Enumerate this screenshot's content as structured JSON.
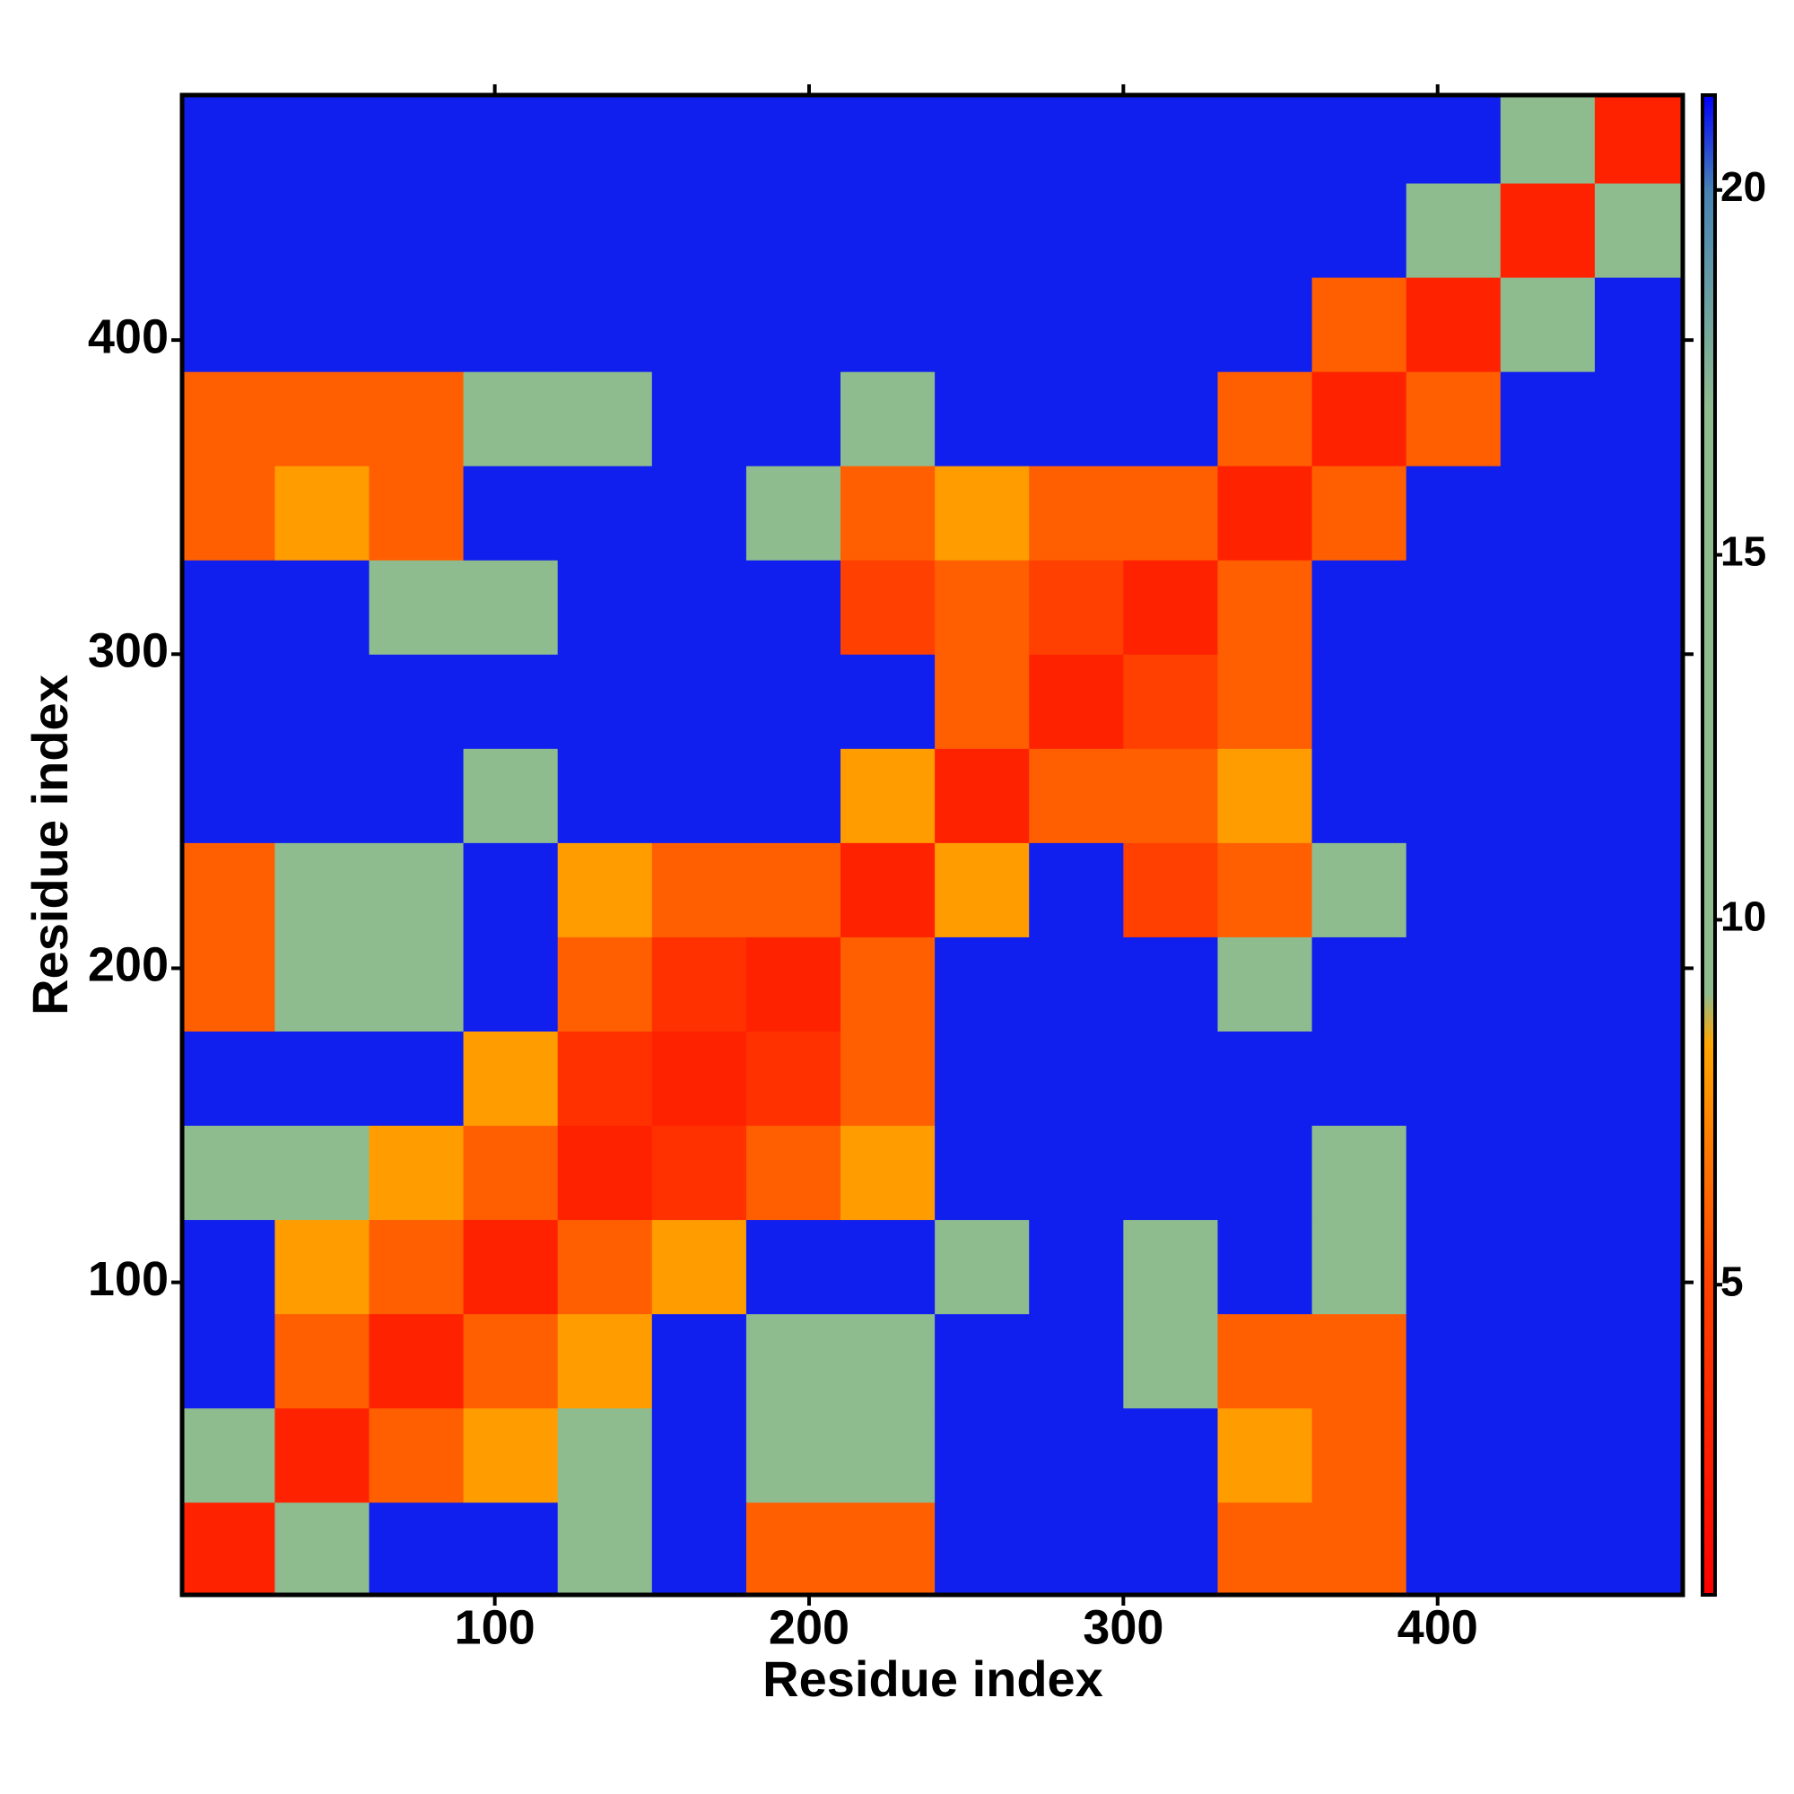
{
  "chart_data": {
    "type": "heatmap",
    "xlabel": "Residue index",
    "ylabel": "Residue index",
    "x": [
      15,
      45,
      75,
      105,
      135,
      165,
      195,
      225,
      255,
      285,
      315,
      345,
      375,
      405,
      435,
      465
    ],
    "y": [
      15,
      45,
      75,
      105,
      135,
      165,
      195,
      225,
      255,
      285,
      315,
      345,
      375,
      405,
      435,
      465
    ],
    "values": [
      [
        3,
        10,
        21,
        21,
        10,
        21,
        6,
        6,
        21,
        21,
        21,
        6,
        6,
        21,
        21,
        21
      ],
      [
        10,
        3,
        6,
        8,
        10,
        21,
        10,
        10,
        21,
        21,
        21,
        8,
        6,
        21,
        21,
        21
      ],
      [
        21,
        6,
        3,
        6,
        8,
        21,
        10,
        10,
        21,
        21,
        10,
        6,
        6,
        21,
        21,
        21
      ],
      [
        21,
        8,
        6,
        3,
        6,
        8,
        21,
        21,
        12,
        21,
        10,
        21,
        9,
        21,
        21,
        21
      ],
      [
        10,
        10,
        8,
        6,
        3,
        4,
        6,
        8,
        21,
        21,
        21,
        21,
        9,
        21,
        21,
        21
      ],
      [
        21,
        21,
        21,
        8,
        4,
        3,
        4,
        6,
        21,
        21,
        21,
        21,
        21,
        21,
        21,
        21
      ],
      [
        6,
        10,
        10,
        21,
        6,
        4,
        3,
        6,
        21,
        21,
        21,
        11,
        21,
        21,
        21,
        21
      ],
      [
        6,
        10,
        10,
        21,
        8,
        6,
        6,
        3,
        8,
        21,
        5,
        6,
        12,
        21,
        21,
        21
      ],
      [
        21,
        21,
        21,
        12,
        21,
        21,
        21,
        8,
        3,
        6,
        6,
        8,
        21,
        21,
        21,
        21
      ],
      [
        21,
        21,
        21,
        21,
        21,
        21,
        21,
        21,
        6,
        3,
        5,
        6,
        21,
        21,
        21,
        21
      ],
      [
        21,
        21,
        10,
        10,
        21,
        21,
        21,
        5,
        6,
        5,
        3,
        6,
        21,
        21,
        21,
        21
      ],
      [
        6,
        8,
        6,
        21,
        21,
        21,
        11,
        6,
        8,
        6,
        6,
        3,
        6,
        21,
        21,
        21
      ],
      [
        6,
        6,
        6,
        9,
        9,
        21,
        21,
        12,
        21,
        21,
        21,
        6,
        3,
        6,
        21,
        21
      ],
      [
        21,
        21,
        21,
        21,
        21,
        21,
        21,
        21,
        21,
        21,
        21,
        21,
        6,
        3,
        10,
        21
      ],
      [
        21,
        21,
        21,
        21,
        21,
        21,
        21,
        21,
        21,
        21,
        21,
        21,
        21,
        10,
        3,
        10
      ],
      [
        21,
        21,
        21,
        21,
        21,
        21,
        21,
        21,
        21,
        21,
        21,
        21,
        21,
        21,
        10,
        3
      ]
    ],
    "xlim": [
      0.5,
      478
    ],
    "ylim": [
      0.5,
      478
    ],
    "xticks": [
      100,
      200,
      300,
      400
    ],
    "yticks": [
      100,
      200,
      300,
      400
    ],
    "colorscale": [
      [
        0.75,
        "#ff0000"
      ],
      [
        5,
        "#ff4000"
      ],
      [
        8.3,
        "#ffa500"
      ],
      [
        9,
        "#8fbc8f"
      ],
      [
        17,
        "#8fbc8f"
      ],
      [
        20,
        "#4682b4"
      ],
      [
        21.3,
        "#0000ff"
      ]
    ],
    "clim": [
      0.75,
      21.3
    ],
    "cticks": [
      5,
      10,
      15,
      20
    ]
  }
}
